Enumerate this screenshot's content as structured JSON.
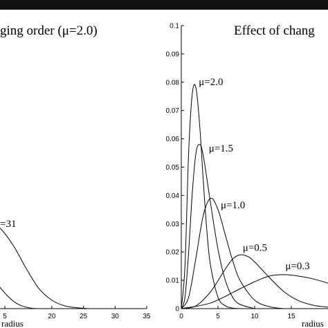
{
  "chart_data": [
    {
      "type": "line",
      "title": "ging order (μ=2.0)",
      "xlabel": "radius",
      "ylabel": "",
      "xlim": [
        0,
        35
      ],
      "x_ticks": [
        "5",
        "20",
        "25",
        "30",
        "35"
      ],
      "series": [
        {
          "label": "=31",
          "x": [
            10,
            12,
            14,
            16,
            18,
            20,
            22,
            24,
            26
          ],
          "y": [
            0.031,
            0.028,
            0.022,
            0.014,
            0.007,
            0.003,
            0.001,
            0.0003,
            0.0
          ]
        },
        {
          "x": [
            10,
            11,
            12,
            13,
            14,
            15,
            16,
            17,
            18
          ],
          "y": [
            0.013,
            0.01,
            0.007,
            0.0045,
            0.0025,
            0.0012,
            0.0005,
            0.0001,
            0.0
          ]
        }
      ]
    },
    {
      "type": "line",
      "title": "Effect of chang",
      "xlabel": "radius",
      "ylabel": "",
      "xlim": [
        0,
        20
      ],
      "ylim": [
        0,
        0.1
      ],
      "grid": false,
      "x_ticks": [
        "0",
        "5",
        "10",
        "15"
      ],
      "y_ticks": [
        "0",
        "0.01",
        "0.02",
        "0.03",
        "0.04",
        "0.05",
        "0.06",
        "0.07",
        "0.08",
        "0.09",
        "0.1"
      ],
      "series": [
        {
          "label": "μ=2.0",
          "x": [
            0,
            0.5,
            1.0,
            1.5,
            2.0,
            2.5,
            3.0,
            3.5,
            4.0,
            5.0,
            6.0,
            7.0,
            8.0
          ],
          "y": [
            0,
            0.015,
            0.055,
            0.076,
            0.078,
            0.065,
            0.045,
            0.027,
            0.015,
            0.004,
            0.001,
            0.0002,
            0
          ]
        },
        {
          "label": "μ=1.5",
          "x": [
            0,
            0.5,
            1.0,
            1.5,
            2.0,
            2.5,
            3.0,
            4.0,
            5.0,
            6.0,
            7.0,
            8.0,
            10.0
          ],
          "y": [
            0,
            0.004,
            0.02,
            0.041,
            0.055,
            0.058,
            0.054,
            0.037,
            0.021,
            0.01,
            0.004,
            0.0015,
            0
          ]
        },
        {
          "label": "μ=1.0",
          "x": [
            0,
            1.0,
            2.0,
            3.0,
            4.0,
            5.0,
            6.0,
            7.0,
            8.0,
            10.0,
            12.0,
            14.0
          ],
          "y": [
            0,
            0.004,
            0.018,
            0.033,
            0.039,
            0.035,
            0.026,
            0.017,
            0.01,
            0.003,
            0.0007,
            0
          ]
        },
        {
          "label": "μ=0.5",
          "x": [
            0,
            2.0,
            4.0,
            6.0,
            7.0,
            8.0,
            9.0,
            10.0,
            12.0,
            14.0,
            16.0,
            18.0,
            20.0
          ],
          "y": [
            0,
            0.001,
            0.006,
            0.014,
            0.0175,
            0.019,
            0.0185,
            0.0165,
            0.011,
            0.006,
            0.0028,
            0.0012,
            0.0005
          ]
        },
        {
          "label": "μ=0.3",
          "x": [
            0,
            4.0,
            8.0,
            10.0,
            12.0,
            14.0,
            16.0,
            18.0,
            20.0
          ],
          "y": [
            0,
            0.002,
            0.007,
            0.0095,
            0.0115,
            0.012,
            0.0115,
            0.0105,
            0.009
          ]
        }
      ]
    }
  ]
}
